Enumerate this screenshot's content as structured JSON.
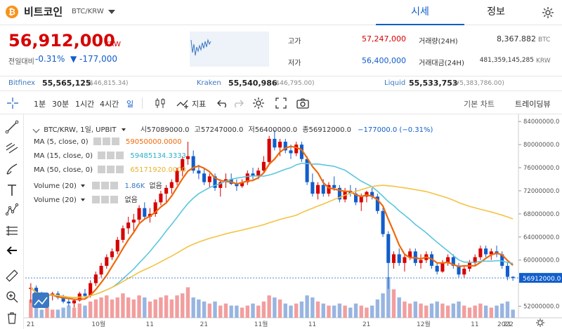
{
  "header": {
    "coin_icon": "bitcoin-icon",
    "coin_symbol_glyph": "₿",
    "coin_name": "비트코인",
    "pair": "BTC/KRW",
    "tabs": [
      {
        "label": "시세",
        "active": true
      },
      {
        "label": "정보",
        "active": false
      }
    ],
    "settings_icon": "gear-icon"
  },
  "price": {
    "current": "56,912,000",
    "unit": "KRW",
    "compare_label": "전일대비",
    "change_pct": "-0.31%",
    "change_amt": "▼ -177,000"
  },
  "stats": {
    "high_label": "고가",
    "high_value": "57,247,000",
    "low_label": "저가",
    "low_value": "56,400,000",
    "volume_label": "거래량(24H)",
    "volume_value": "8,367.882",
    "volume_unit": "BTC",
    "amount_label": "거래대금(24H)",
    "amount_value": "481,359,145,285",
    "amount_unit": "KRW"
  },
  "exchanges": [
    {
      "name": "Bitfinex",
      "value": "55,565,125",
      "sub": "($46,815.34)"
    },
    {
      "name": "Kraken",
      "value": "55,540,986",
      "sub": "($46,795.00)"
    },
    {
      "name": "Liquid",
      "value": "55,533,753",
      "sub": "(¥5,383,786.00)"
    }
  ],
  "toolbar": {
    "intervals": [
      {
        "label": "1분",
        "active": false
      },
      {
        "label": "30분",
        "active": false
      },
      {
        "label": "1시간",
        "active": false
      },
      {
        "label": "4시간",
        "active": false
      },
      {
        "label": "일",
        "active": true
      }
    ],
    "indicator_label": "지표",
    "basic_chart": "기본 차트",
    "tradingview": "트레이딩뷰"
  },
  "chart_legend": {
    "main": "BTC/KRW, 1일, UPBIT",
    "open": "시57089000.0",
    "high": "고57247000.0",
    "low": "저56400000.0",
    "close": "종56912000.0",
    "change": "−177000.0 (−0.31%)",
    "ma5": "MA (5, close, 0)",
    "ma5_val": "59050000.0000",
    "ma15": "MA (15, close, 0)",
    "ma15_val": "59485134.3333",
    "ma50": "MA (50, close, 0)",
    "ma50_val": "65171920.0000",
    "vol1": "Volume (20)",
    "vol1_val": "1.86K",
    "vol1_sub": "없음",
    "vol2": "Volume (20)",
    "vol2_sub": "없음",
    "current_price_tag": "56912000.0"
  },
  "chart_data": {
    "type": "candlestick",
    "y_ticks": [
      "84000000.0",
      "80000000.0",
      "76000000.0",
      "72000000.0",
      "68000000.0",
      "64000000.0",
      "60000000.0",
      "52000000.0"
    ],
    "x_ticks": [
      "21",
      "10월",
      "11",
      "21",
      "11월",
      "11",
      "21",
      "12월",
      "11",
      "21",
      "2022"
    ],
    "ylim": [
      50000000,
      85000000
    ],
    "ohlc": [
      [
        55.0,
        56.0,
        52.6,
        55.2
      ],
      [
        55.2,
        55.6,
        52.5,
        53.6
      ],
      [
        53.6,
        54.5,
        52.8,
        53.0
      ],
      [
        53.0,
        54.0,
        52.6,
        53.8
      ],
      [
        53.8,
        54.5,
        53.0,
        54.2
      ],
      [
        54.2,
        54.6,
        53.2,
        53.5
      ],
      [
        53.5,
        54.0,
        52.5,
        52.8
      ],
      [
        52.8,
        53.5,
        52.0,
        52.5
      ],
      [
        52.5,
        53.2,
        51.8,
        53.0
      ],
      [
        53.0,
        54.5,
        52.8,
        54.2
      ],
      [
        54.2,
        55.0,
        53.5,
        53.8
      ],
      [
        53.8,
        56.5,
        53.5,
        56.0
      ],
      [
        56.0,
        58.0,
        55.5,
        57.5
      ],
      [
        57.5,
        59.5,
        57.0,
        59.0
      ],
      [
        59.0,
        61.0,
        58.5,
        60.5
      ],
      [
        60.5,
        62.0,
        60.0,
        61.5
      ],
      [
        61.5,
        64.0,
        61.0,
        63.5
      ],
      [
        63.5,
        66.0,
        63.0,
        65.5
      ],
      [
        65.5,
        67.5,
        64.5,
        66.5
      ],
      [
        66.5,
        68.0,
        65.0,
        67.0
      ],
      [
        67.0,
        69.5,
        66.5,
        69.0
      ],
      [
        69.0,
        70.0,
        67.0,
        67.5
      ],
      [
        67.5,
        69.0,
        66.5,
        68.0
      ],
      [
        68.0,
        70.5,
        67.5,
        70.0
      ],
      [
        70.0,
        72.0,
        69.5,
        71.5
      ],
      [
        71.5,
        73.0,
        70.0,
        72.5
      ],
      [
        72.5,
        74.0,
        71.5,
        73.5
      ],
      [
        73.5,
        76.0,
        73.0,
        75.5
      ],
      [
        75.5,
        78.0,
        74.5,
        77.5
      ],
      [
        77.5,
        80.5,
        76.5,
        78.0
      ],
      [
        78.0,
        79.0,
        75.0,
        75.5
      ],
      [
        75.5,
        76.5,
        74.0,
        75.0
      ],
      [
        75.0,
        76.0,
        73.0,
        73.5
      ],
      [
        73.5,
        75.0,
        72.5,
        74.5
      ],
      [
        74.5,
        75.0,
        72.0,
        72.5
      ],
      [
        72.5,
        74.0,
        71.0,
        73.5
      ],
      [
        73.5,
        75.0,
        72.5,
        74.0
      ],
      [
        74.0,
        75.0,
        73.0,
        73.2
      ],
      [
        73.2,
        74.0,
        72.0,
        72.8
      ],
      [
        72.8,
        74.0,
        72.5,
        73.5
      ],
      [
        73.5,
        75.5,
        73.0,
        75.0
      ],
      [
        75.0,
        76.0,
        74.0,
        74.5
      ],
      [
        74.5,
        76.0,
        74.0,
        75.5
      ],
      [
        75.5,
        78.0,
        75.0,
        77.0
      ],
      [
        77.0,
        81.5,
        76.5,
        81.0
      ],
      [
        81.0,
        82.5,
        79.0,
        79.5
      ],
      [
        79.5,
        81.0,
        78.0,
        80.5
      ],
      [
        80.5,
        81.0,
        78.5,
        79.0
      ],
      [
        79.0,
        80.0,
        77.5,
        78.5
      ],
      [
        78.5,
        80.5,
        78.0,
        80.0
      ],
      [
        80.0,
        80.5,
        77.0,
        77.5
      ],
      [
        77.5,
        78.0,
        73.0,
        73.5
      ],
      [
        73.5,
        75.0,
        71.0,
        71.5
      ],
      [
        71.5,
        73.5,
        70.5,
        73.0
      ],
      [
        73.0,
        74.0,
        71.0,
        71.5
      ],
      [
        71.5,
        73.5,
        71.0,
        73.0
      ],
      [
        73.0,
        74.5,
        72.0,
        72.5
      ],
      [
        72.5,
        73.0,
        70.0,
        70.5
      ],
      [
        70.5,
        72.5,
        70.0,
        72.0
      ],
      [
        72.0,
        73.0,
        71.0,
        71.5
      ],
      [
        71.5,
        72.5,
        69.5,
        70.0
      ],
      [
        70.0,
        71.5,
        68.5,
        71.0
      ],
      [
        71.0,
        72.0,
        70.0,
        71.8
      ],
      [
        71.8,
        72.5,
        70.5,
        71.0
      ],
      [
        71.0,
        71.5,
        68.0,
        68.5
      ],
      [
        68.5,
        69.0,
        64.0,
        64.5
      ],
      [
        64.5,
        65.0,
        55.0,
        59.5
      ],
      [
        59.5,
        61.5,
        58.5,
        61.0
      ],
      [
        61.0,
        62.0,
        59.0,
        59.5
      ],
      [
        59.5,
        61.0,
        58.0,
        60.5
      ],
      [
        60.5,
        62.0,
        60.0,
        61.5
      ],
      [
        61.5,
        62.0,
        59.0,
        59.5
      ],
      [
        59.5,
        61.0,
        58.5,
        60.0
      ],
      [
        60.0,
        61.5,
        59.5,
        61.0
      ],
      [
        61.0,
        61.5,
        58.5,
        59.0
      ],
      [
        59.0,
        59.5,
        57.5,
        58.0
      ],
      [
        58.0,
        60.0,
        57.8,
        59.5
      ],
      [
        59.5,
        61.0,
        59.0,
        60.5
      ],
      [
        60.5,
        61.0,
        58.5,
        59.0
      ],
      [
        59.0,
        59.5,
        57.0,
        57.5
      ],
      [
        57.5,
        59.0,
        57.0,
        58.5
      ],
      [
        58.5,
        60.0,
        58.0,
        59.5
      ],
      [
        59.5,
        61.0,
        59.0,
        60.5
      ],
      [
        60.5,
        62.5,
        60.0,
        62.0
      ],
      [
        62.0,
        62.5,
        60.5,
        61.0
      ],
      [
        61.0,
        62.0,
        60.0,
        61.5
      ],
      [
        61.5,
        62.5,
        60.5,
        61.0
      ],
      [
        61.0,
        61.5,
        58.5,
        59.0
      ],
      [
        59.0,
        59.5,
        56.5,
        57.1
      ],
      [
        57.1,
        57.2,
        56.4,
        56.9
      ]
    ],
    "volumes": [
      0.45,
      0.25,
      0.2,
      0.25,
      0.2,
      0.2,
      0.25,
      0.3,
      0.25,
      0.35,
      0.3,
      0.4,
      0.45,
      0.5,
      0.55,
      0.45,
      0.5,
      0.6,
      0.5,
      0.45,
      0.55,
      0.5,
      0.4,
      0.45,
      0.5,
      0.55,
      0.45,
      0.55,
      0.6,
      0.75,
      0.5,
      0.45,
      0.4,
      0.35,
      0.4,
      0.3,
      0.35,
      0.3,
      0.3,
      0.25,
      0.3,
      0.35,
      0.3,
      0.4,
      0.55,
      0.5,
      0.45,
      0.35,
      0.3,
      0.35,
      0.4,
      0.55,
      0.5,
      0.4,
      0.35,
      0.3,
      0.3,
      0.35,
      0.3,
      0.25,
      0.35,
      0.3,
      0.25,
      0.3,
      0.45,
      0.6,
      1.0,
      0.7,
      0.5,
      0.4,
      0.35,
      0.4,
      0.35,
      0.3,
      0.35,
      0.4,
      0.35,
      0.3,
      0.35,
      0.4,
      0.3,
      0.25,
      0.3,
      0.35,
      0.3,
      0.25,
      0.3,
      0.35,
      0.4,
      0.2
    ],
    "series": [
      {
        "name": "MA (5, close, 0)",
        "color": "#f0680a"
      },
      {
        "name": "MA (15, close, 0)",
        "color": "#5bc6dd"
      },
      {
        "name": "MA (50, close, 0)",
        "color": "#f5c242"
      }
    ]
  },
  "colors": {
    "up": "#d60000",
    "down": "#115dcb",
    "accent": "#115dcb"
  }
}
